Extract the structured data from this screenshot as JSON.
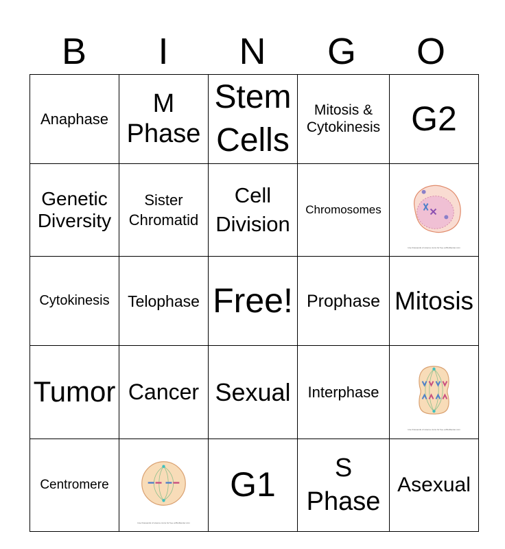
{
  "header": [
    "B",
    "I",
    "N",
    "G",
    "O"
  ],
  "board": [
    [
      {
        "text": "Anaphase"
      },
      {
        "text": "M Phase"
      },
      {
        "text": "Stem Cells"
      },
      {
        "text": "Mitosis & Cytokinesis"
      },
      {
        "text": "G2"
      }
    ],
    [
      {
        "text": "Genetic Diversity"
      },
      {
        "text": "Sister Chromatid"
      },
      {
        "text": "Cell Division"
      },
      {
        "text": "Chromosomes"
      },
      {
        "image": "prophase-cell"
      }
    ],
    [
      {
        "text": "Cytokinesis"
      },
      {
        "text": "Telophase"
      },
      {
        "text": "Free!"
      },
      {
        "text": "Prophase"
      },
      {
        "text": "Mitosis"
      }
    ],
    [
      {
        "text": "Tumor"
      },
      {
        "text": "Cancer"
      },
      {
        "text": "Sexual"
      },
      {
        "text": "Interphase"
      },
      {
        "image": "anaphase-cell"
      }
    ],
    [
      {
        "text": "Centromere"
      },
      {
        "image": "metaphase-cell"
      },
      {
        "text": "G1"
      },
      {
        "text": "S Phase"
      },
      {
        "text": "Asexual"
      }
    ]
  ],
  "image_caption": "Use thousands of science icons for free at BioRender.com"
}
